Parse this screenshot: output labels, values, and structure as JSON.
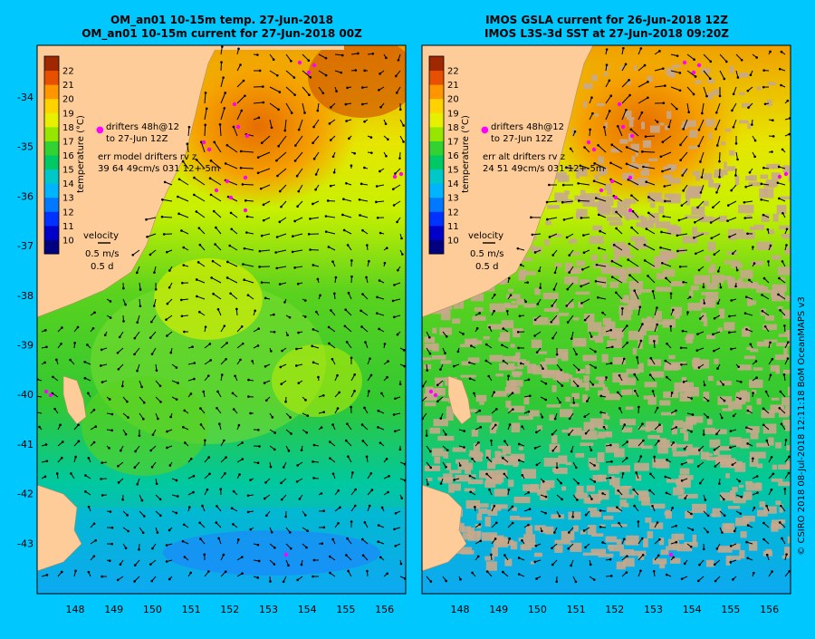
{
  "background_color": "#00c8ff",
  "land_color": "#fdcc99",
  "missing_data_color": "#c8a98c",
  "drifter_color": "#ff00ff",
  "arrow_color": "#000000",
  "left_panel": {
    "title_line1": "OM_an01 10-15m temp. 27-Jun-2018",
    "title_line2": "OM_an01 10-15m current for 27-Jun-2018 00Z",
    "drifter_line1": "drifters 48h@12",
    "drifter_line2": "to 27-Jun 12Z",
    "err_line1": "err model drifters rv z",
    "err_line2": "39 64 49cm/s 031 12+-5m"
  },
  "right_panel": {
    "title_line1": "IMOS GSLA current for 26-Jun-2018 12Z",
    "title_line2": "IMOS L3S-3d SST at 27-Jun-2018 09:20Z",
    "drifter_line1": "drifters 48h@12",
    "drifter_line2": "to 27-Jun 12Z",
    "err_line1": "err alt drifters rv z",
    "err_line2": "24 51 49cm/s 031 12+-5m"
  },
  "colorbar": {
    "label": "temperature (°C)",
    "ticks": [
      "10",
      "11",
      "12",
      "13",
      "14",
      "15",
      "16",
      "17",
      "18",
      "19",
      "20",
      "21",
      "22"
    ],
    "colors": [
      "#000080",
      "#0000c8",
      "#0032ff",
      "#0078ff",
      "#00b4ff",
      "#00c8c8",
      "#00c864",
      "#32d232",
      "#96e600",
      "#e6f000",
      "#ffd200",
      "#ff9600",
      "#e65000",
      "#a02800"
    ]
  },
  "velocity_legend": {
    "label": "velocity",
    "speed": "0.5 m/s",
    "time": "0.5 d"
  },
  "lat_labels": [
    "-34",
    "-35",
    "-36",
    "-37",
    "-38",
    "-39",
    "-40",
    "-41",
    "-42",
    "-43"
  ],
  "lon_labels": [
    "148",
    "149",
    "150",
    "151",
    "152",
    "153",
    "154",
    "155",
    "156"
  ],
  "credit": "© CSIRO 2018   08-Jul-2018 12:11:18 BoM OceanMAPS v3"
}
